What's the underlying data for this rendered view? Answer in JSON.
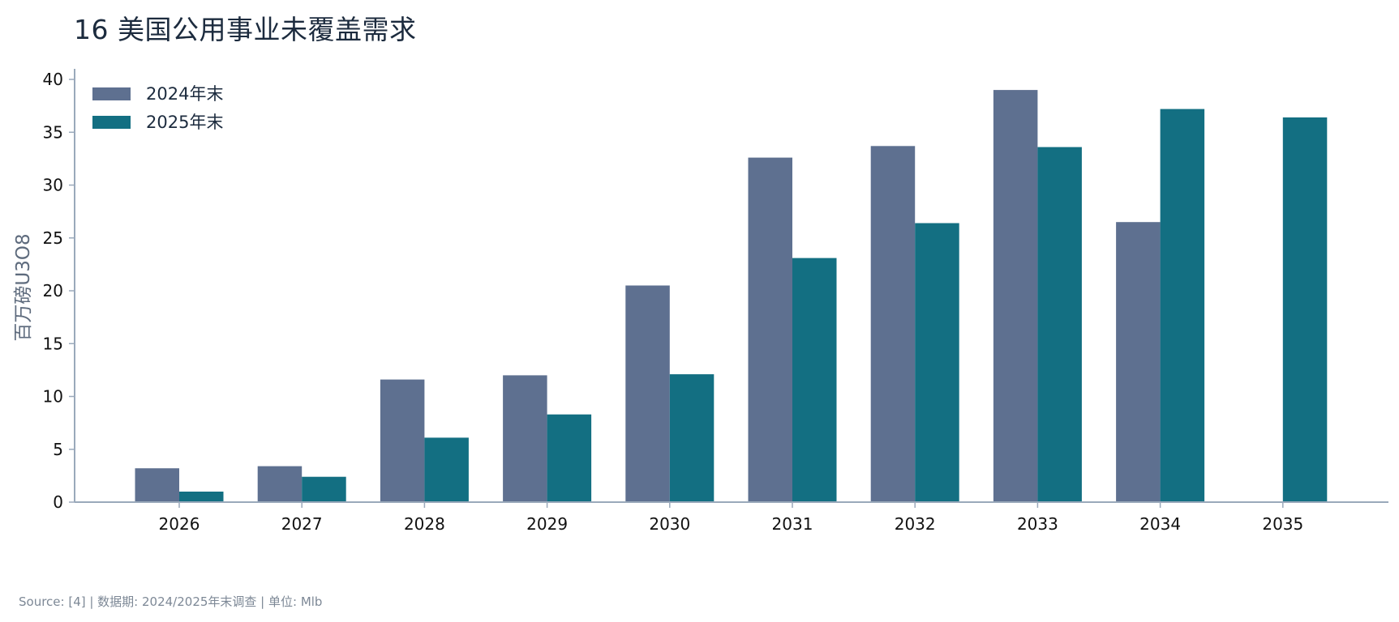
{
  "chart_data": {
    "type": "bar",
    "title": "16  美国公用事业未覆盖需求",
    "ylabel": "百万磅U3O8",
    "xlabel": "",
    "categories": [
      "2026",
      "2027",
      "2028",
      "2029",
      "2030",
      "2031",
      "2032",
      "2033",
      "2034",
      "2035"
    ],
    "series": [
      {
        "name": "2024年末",
        "color": "#5e7090",
        "values": [
          3.2,
          3.4,
          11.6,
          12.0,
          20.5,
          32.6,
          33.7,
          39.0,
          26.5,
          null
        ]
      },
      {
        "name": "2025年末",
        "color": "#136f82",
        "values": [
          1.0,
          2.4,
          6.1,
          8.3,
          12.1,
          23.1,
          26.4,
          33.6,
          37.2,
          36.4
        ]
      }
    ],
    "ylim": [
      0,
      41
    ],
    "yticks": [
      0,
      5,
      10,
      15,
      20,
      25,
      30,
      35,
      40
    ],
    "grid": false,
    "legend": "top-left"
  },
  "footer": {
    "source": "Source: [4] | 数据期: 2024/2025年末调查 | 单位: Mlb"
  }
}
